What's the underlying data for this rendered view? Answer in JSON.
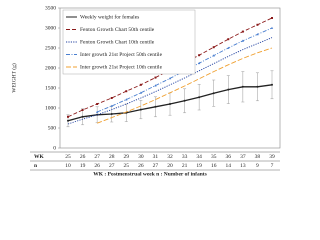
{
  "chart_data": {
    "type": "line",
    "y_label": "WEIGHT (g)",
    "x_label": "WK : Postmenstrual week   n : Number of infants",
    "categories": [
      "25",
      "26",
      "27",
      "28",
      "29",
      "30",
      "31",
      "32",
      "33",
      "34",
      "35",
      "36",
      "37",
      "38",
      "39"
    ],
    "table_row_labels": [
      "WK",
      "n"
    ],
    "counts": [
      10,
      19,
      26,
      27,
      25,
      26,
      27,
      20,
      21,
      19,
      16,
      14,
      13,
      9,
      7
    ],
    "ylim": [
      0,
      3500
    ],
    "yticks": [
      0,
      500,
      1000,
      1500,
      2000,
      2500,
      3000,
      3500
    ],
    "grid": false,
    "legend": "upper-left",
    "series": [
      {
        "name": "Weekly weight for females",
        "color": "#222222",
        "dash": "",
        "marker": "circle",
        "values": [
          680,
          780,
          830,
          850,
          880,
          960,
          1030,
          1100,
          1180,
          1270,
          1370,
          1460,
          1530,
          1530,
          1580
        ],
        "errors": [
          150,
          200,
          200,
          200,
          220,
          230,
          250,
          280,
          300,
          320,
          330,
          350,
          380,
          350,
          350
        ]
      },
      {
        "name": "Fenton Growth Chart 50th centile",
        "color": "#8b1a1a",
        "dash": "4 2",
        "marker": "square",
        "values": [
          780,
          950,
          1100,
          1250,
          1420,
          1580,
          1760,
          1950,
          2130,
          2320,
          2520,
          2720,
          2910,
          3080,
          3250
        ]
      },
      {
        "name": "Fenton Growth Chart 10th centile",
        "color": "#1f3f9f",
        "dash": "1.2 1.2",
        "marker": "none",
        "values": [
          600,
          720,
          830,
          960,
          1100,
          1250,
          1410,
          1580,
          1750,
          1930,
          2110,
          2290,
          2460,
          2610,
          2760
        ]
      },
      {
        "name": "Inter growth 21st Project 50th centile",
        "color": "#4a7fd0",
        "dash": "4 1.5 1 1.5",
        "marker": "triangle",
        "values": [
          null,
          null,
          900,
          1050,
          1210,
          1380,
          1560,
          1740,
          1930,
          2120,
          2310,
          2500,
          2680,
          2840,
          3000
        ]
      },
      {
        "name": "Inter growth 21st Project 10th centile",
        "color": "#f0a030",
        "dash": "5 2",
        "marker": "none",
        "values": [
          null,
          null,
          620,
          760,
          900,
          1050,
          1210,
          1380,
          1550,
          1730,
          1910,
          2080,
          2240,
          2380,
          2500
        ]
      }
    ]
  }
}
